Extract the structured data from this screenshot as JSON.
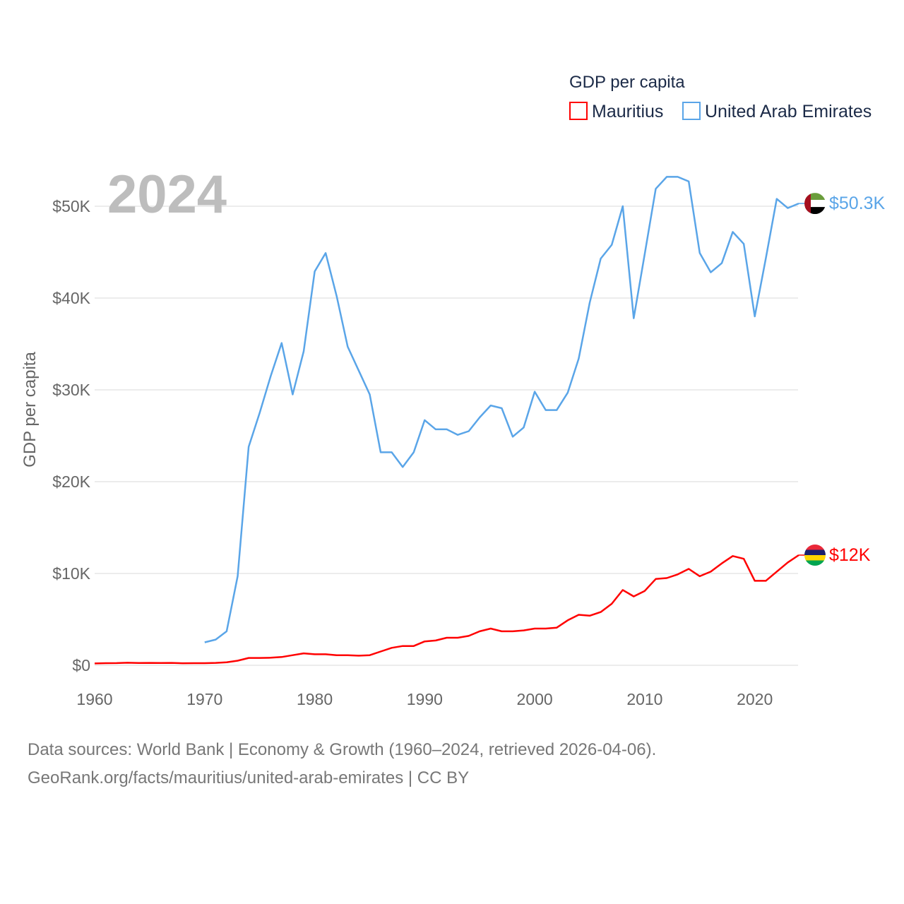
{
  "chart_data": {
    "type": "line",
    "title": "GDP per capita",
    "year_label": "2024",
    "ylabel": "GDP per capita",
    "xlabel": "",
    "xlim": [
      1960,
      2024
    ],
    "ylim": [
      0,
      55000
    ],
    "x_ticks": [
      1960,
      1970,
      1980,
      1990,
      2000,
      2010,
      2020
    ],
    "x_tick_labels": [
      "1960",
      "1970",
      "1980",
      "1990",
      "2000",
      "2010",
      "2020"
    ],
    "y_ticks": [
      0,
      10000,
      20000,
      30000,
      40000,
      50000
    ],
    "y_tick_labels": [
      "$0",
      "$10K",
      "$20K",
      "$30K",
      "$40K",
      "$50K"
    ],
    "grid": true,
    "legend_position": "top-right",
    "series": [
      {
        "name": "Mauritius",
        "color": "#ff0000",
        "end_label": "$12K",
        "flag": "mauritius-flag",
        "start_year": 1960,
        "values": [
          200,
          230,
          240,
          280,
          250,
          260,
          250,
          260,
          220,
          230,
          230,
          260,
          330,
          500,
          800,
          800,
          820,
          900,
          1100,
          1300,
          1200,
          1200,
          1100,
          1100,
          1050,
          1100,
          1500,
          1900,
          2100,
          2100,
          2600,
          2700,
          3000,
          3000,
          3200,
          3700,
          4000,
          3700,
          3700,
          3800,
          4000,
          4000,
          4100,
          4900,
          5500,
          5400,
          5800,
          6700,
          8200,
          7500,
          8100,
          9400,
          9500,
          9900,
          10500,
          9700,
          10200,
          11100,
          11900,
          11600,
          9200,
          9200,
          10200,
          11200,
          12000
        ]
      },
      {
        "name": "United Arab Emirates",
        "color": "#5aa5e8",
        "end_label": "$50.3K",
        "flag": "uae-flag",
        "start_year": 1970,
        "values": [
          2500,
          2800,
          3700,
          9700,
          23800,
          27500,
          31500,
          35100,
          29500,
          34200,
          42900,
          44900,
          40200,
          34700,
          32100,
          29500,
          23200,
          23200,
          21600,
          23200,
          26700,
          25700,
          25700,
          25100,
          25500,
          27000,
          28300,
          28000,
          24900,
          25900,
          29800,
          27800,
          27800,
          29700,
          33400,
          39500,
          44300,
          45800,
          50000,
          37800,
          44800,
          51900,
          53200,
          53200,
          52700,
          44900,
          42800,
          43800,
          47200,
          45900,
          38000,
          44300,
          50800,
          49800,
          50300
        ]
      }
    ]
  },
  "footer": {
    "line1": "Data sources: World Bank | Economy & Growth (1960–2024, retrieved 2026-04-06).",
    "line2": "GeoRank.org/facts/mauritius/united-arab-emirates | CC BY"
  }
}
